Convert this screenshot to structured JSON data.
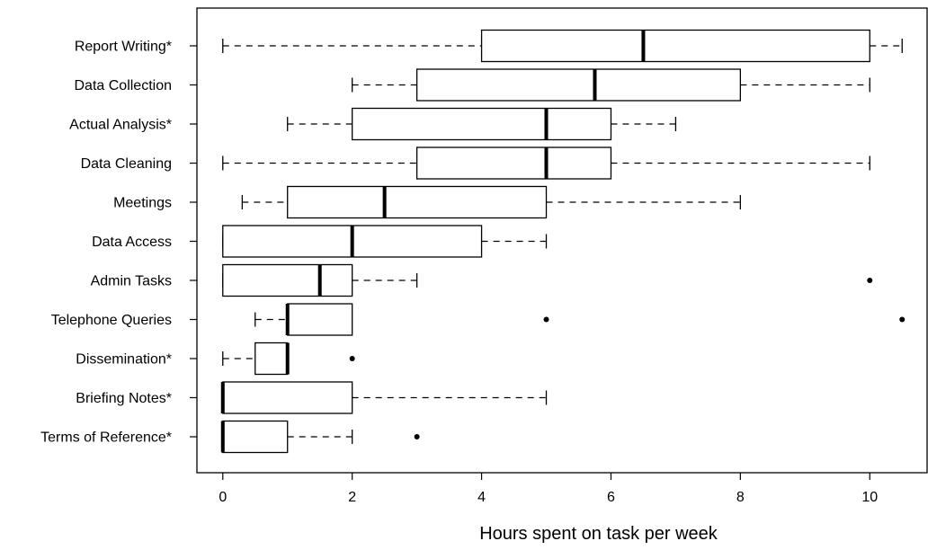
{
  "chart_data": {
    "type": "boxplot",
    "orientation": "horizontal",
    "title": "",
    "xlabel": "Hours spent on task per week",
    "ylabel": "",
    "xlim": [
      -0.4,
      10.9
    ],
    "xticks": [
      0,
      2,
      4,
      6,
      8,
      10
    ],
    "grid": false,
    "categories": [
      "Report Writing*",
      "Data Collection",
      "Actual Analysis*",
      "Data Cleaning",
      "Meetings",
      "Data Access",
      "Admin Tasks",
      "Telephone Queries",
      "Dissemination*",
      "Briefing Notes*",
      "Terms of Reference*"
    ],
    "boxes": [
      {
        "label": "Report Writing*",
        "whisker_low": 0,
        "q1": 4,
        "median": 6.5,
        "q3": 10,
        "whisker_high": 10.5,
        "outliers": []
      },
      {
        "label": "Data Collection",
        "whisker_low": 2,
        "q1": 3,
        "median": 5.75,
        "q3": 8,
        "whisker_high": 10,
        "outliers": []
      },
      {
        "label": "Actual Analysis*",
        "whisker_low": 1,
        "q1": 2,
        "median": 5,
        "q3": 6,
        "whisker_high": 7,
        "outliers": []
      },
      {
        "label": "Data Cleaning",
        "whisker_low": 0,
        "q1": 3,
        "median": 5,
        "q3": 6,
        "whisker_high": 10,
        "outliers": []
      },
      {
        "label": "Meetings",
        "whisker_low": 0.3,
        "q1": 1,
        "median": 2.5,
        "q3": 5,
        "whisker_high": 8,
        "outliers": []
      },
      {
        "label": "Data Access",
        "whisker_low": 0,
        "q1": 0,
        "median": 2,
        "q3": 4,
        "whisker_high": 5,
        "outliers": []
      },
      {
        "label": "Admin Tasks",
        "whisker_low": 0,
        "q1": 0,
        "median": 1.5,
        "q3": 2,
        "whisker_high": 3,
        "outliers": [
          10
        ]
      },
      {
        "label": "Telephone Queries",
        "whisker_low": 0.5,
        "q1": 1,
        "median": 1,
        "q3": 2,
        "whisker_high": 2,
        "outliers": [
          5,
          10.5
        ]
      },
      {
        "label": "Dissemination*",
        "whisker_low": 0,
        "q1": 0.5,
        "median": 1,
        "q3": 1,
        "whisker_high": 1,
        "outliers": [
          2
        ]
      },
      {
        "label": "Briefing Notes*",
        "whisker_low": 0,
        "q1": 0,
        "median": 0,
        "q3": 2,
        "whisker_high": 5,
        "outliers": []
      },
      {
        "label": "Terms of Reference*",
        "whisker_low": 0,
        "q1": 0,
        "median": 0,
        "q3": 1,
        "whisker_high": 2,
        "outliers": [
          3
        ]
      }
    ]
  }
}
